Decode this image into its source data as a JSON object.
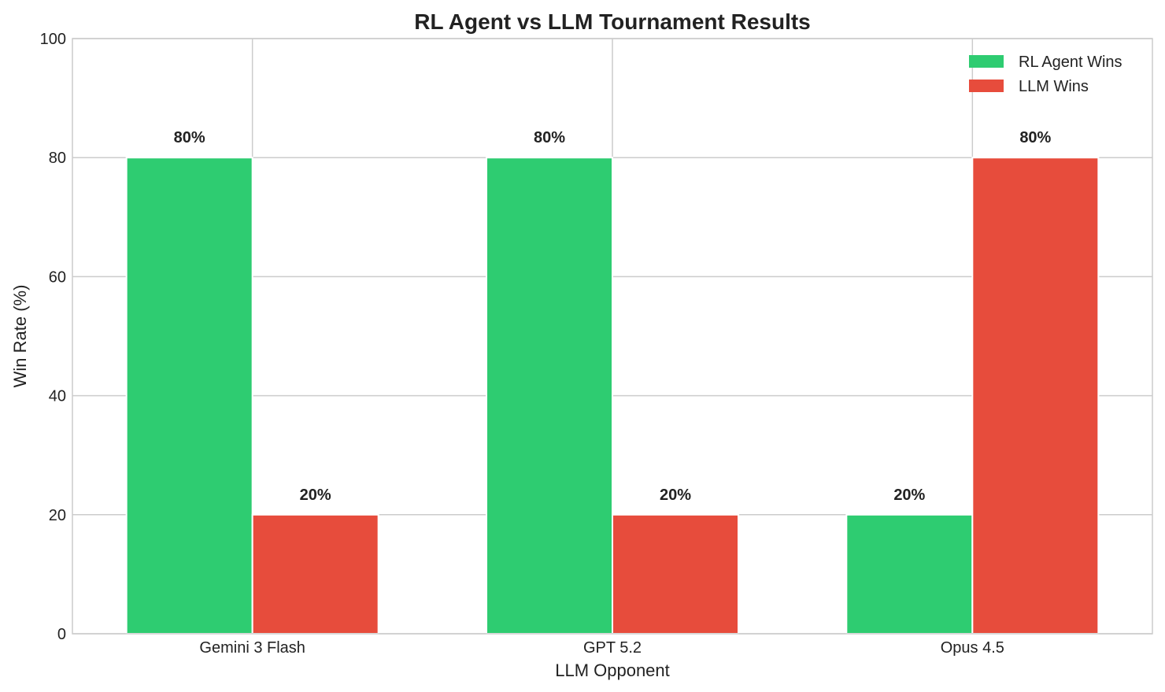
{
  "chart_data": {
    "type": "bar",
    "title": "RL Agent vs LLM Tournament Results",
    "xlabel": "LLM Opponent",
    "ylabel": "Win Rate (%)",
    "categories": [
      "Gemini 3 Flash",
      "GPT 5.2",
      "Opus 4.5"
    ],
    "series": [
      {
        "name": "RL Agent Wins",
        "color": "#2ecc71",
        "values": [
          80,
          80,
          20
        ],
        "labels": [
          "80%",
          "80%",
          "20%"
        ]
      },
      {
        "name": "LLM Wins",
        "color": "#e74c3c",
        "values": [
          20,
          20,
          80
        ],
        "labels": [
          "20%",
          "20%",
          "80%"
        ]
      }
    ],
    "ylim": [
      0,
      100
    ],
    "yticks": [
      0,
      20,
      40,
      60,
      80,
      100
    ],
    "grid": true,
    "legend_position": "top-right"
  }
}
